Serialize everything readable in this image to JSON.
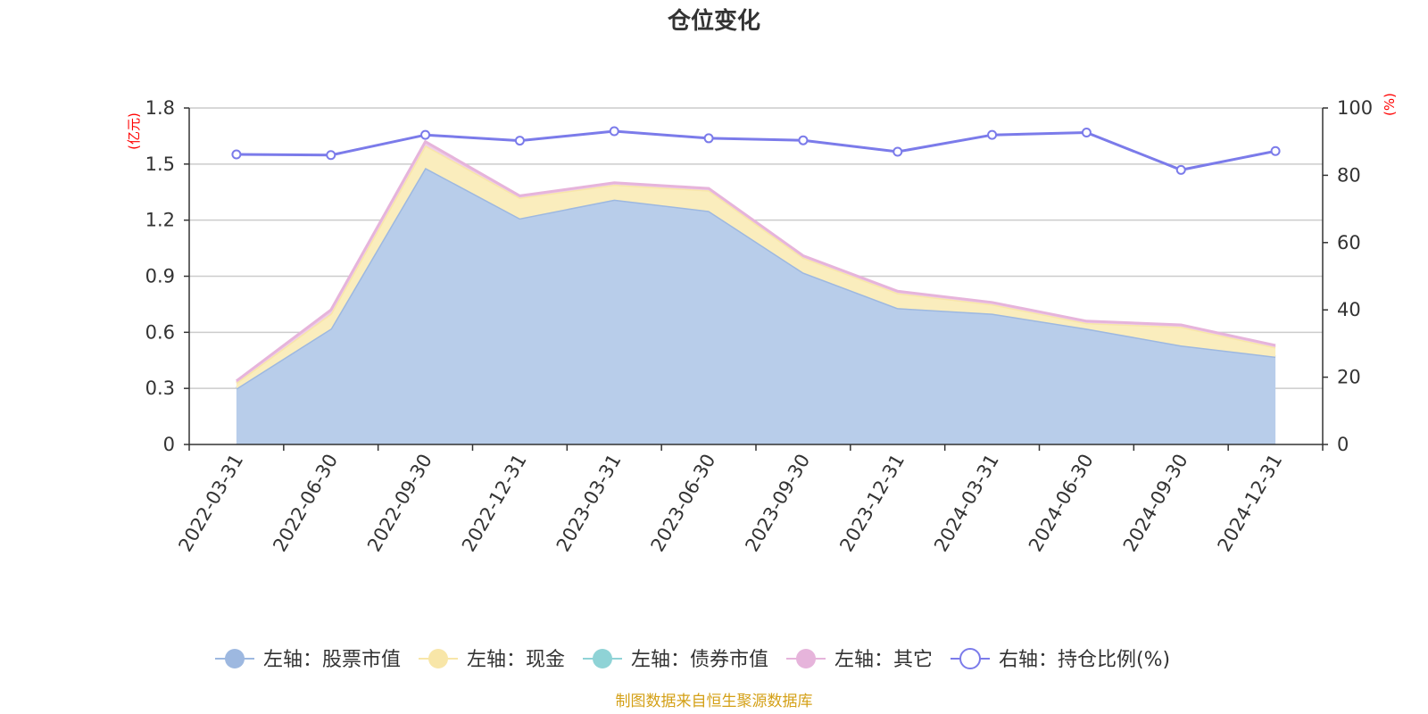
{
  "chart_data": {
    "type": "area",
    "title": "仓位变化",
    "left_unit": "(亿元)",
    "right_unit": "(%)",
    "categories": [
      "2022-03-31",
      "2022-06-30",
      "2022-09-30",
      "2022-12-31",
      "2023-03-31",
      "2023-06-30",
      "2023-09-30",
      "2023-12-31",
      "2024-03-31",
      "2024-06-30",
      "2024-09-30",
      "2024-12-31"
    ],
    "left_axis": {
      "min": 0,
      "max": 1.8,
      "ticks": [
        "0",
        "0.3",
        "0.6",
        "0.9",
        "1.2",
        "1.5",
        "1.8"
      ]
    },
    "right_axis": {
      "min": 0,
      "max": 100,
      "ticks": [
        "0",
        "20",
        "40",
        "60",
        "80",
        "100"
      ]
    },
    "grid": true,
    "stacked": true,
    "series": [
      {
        "name": "左轴：股票市值",
        "axis": "left",
        "color": "#9db8e0",
        "fill": "#b8cdea",
        "values": [
          0.3,
          0.62,
          1.48,
          1.21,
          1.31,
          1.25,
          0.92,
          0.73,
          0.7,
          0.62,
          0.53,
          0.47
        ]
      },
      {
        "name": "左轴：现金",
        "axis": "left",
        "color": "#f8e6a8",
        "fill": "#faedbd",
        "values": [
          0.03,
          0.08,
          0.12,
          0.11,
          0.08,
          0.11,
          0.08,
          0.08,
          0.05,
          0.03,
          0.1,
          0.05
        ]
      },
      {
        "name": "左轴：债券市值",
        "axis": "left",
        "color": "#8fd3d6",
        "fill": "#a8dfe1",
        "values": [
          0,
          0,
          0,
          0,
          0,
          0,
          0,
          0,
          0,
          0,
          0,
          0
        ]
      },
      {
        "name": "左轴：其它",
        "axis": "left",
        "color": "#e6b4db",
        "fill": "#efcde8",
        "values": [
          0.01,
          0.02,
          0.02,
          0.01,
          0.01,
          0.01,
          0.01,
          0.01,
          0.01,
          0.01,
          0.01,
          0.01
        ]
      },
      {
        "name": "右轴：持仓比例(%)",
        "axis": "right",
        "type": "line",
        "color": "#7b7bea",
        "values": [
          86.2,
          86.0,
          92.0,
          90.3,
          93.1,
          91.0,
          90.4,
          87.0,
          92.0,
          92.7,
          81.6,
          87.2
        ]
      }
    ],
    "legend_position": "bottom",
    "source": "制图数据来自恒生聚源数据库"
  }
}
